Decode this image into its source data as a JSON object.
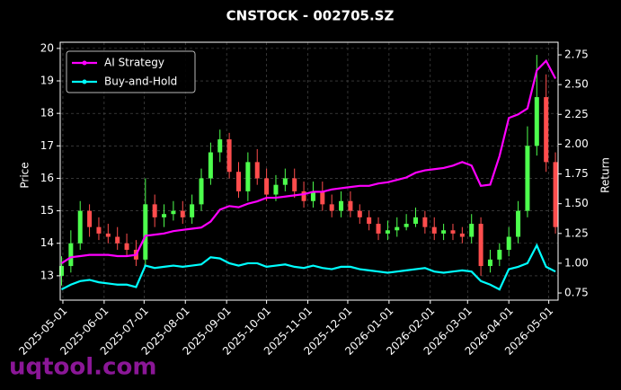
{
  "chart_data": {
    "type": "candlestick",
    "title": "CNSTOCK - 002705.SZ",
    "ylabel": "Price",
    "y2label": "Return",
    "watermark": "uqtool.com",
    "legend": "upper left",
    "grid": true,
    "up_color": "#4dff4d",
    "down_color": "#ff4d4d",
    "x": [
      "2025-04-30",
      "2025-05-07",
      "2025-05-14",
      "2025-05-21",
      "2025-05-28",
      "2025-06-04",
      "2025-06-11",
      "2025-06-18",
      "2025-06-25",
      "2025-07-02",
      "2025-07-09",
      "2025-07-16",
      "2025-07-23",
      "2025-07-30",
      "2025-08-06",
      "2025-08-13",
      "2025-08-20",
      "2025-08-27",
      "2025-09-03",
      "2025-09-10",
      "2025-09-17",
      "2025-09-24",
      "2025-10-01",
      "2025-10-08",
      "2025-10-15",
      "2025-10-22",
      "2025-10-29",
      "2025-11-05",
      "2025-11-12",
      "2025-11-19",
      "2025-11-26",
      "2025-12-03",
      "2025-12-10",
      "2025-12-17",
      "2025-12-24",
      "2025-12-31",
      "2026-01-07",
      "2026-01-14",
      "2026-01-21",
      "2026-01-28",
      "2026-02-04",
      "2026-02-11",
      "2026-02-18",
      "2026-02-25",
      "2026-03-04",
      "2026-03-11",
      "2026-03-18",
      "2026-03-25",
      "2026-04-01",
      "2026-04-08",
      "2026-04-15",
      "2026-04-22",
      "2026-04-29",
      "2026-05-06"
    ],
    "open": [
      13.0,
      13.3,
      14.0,
      15.0,
      14.5,
      14.3,
      14.2,
      14.0,
      13.8,
      13.5,
      15.2,
      14.8,
      14.9,
      15.0,
      14.8,
      15.2,
      16.0,
      16.8,
      17.2,
      16.2,
      15.6,
      16.5,
      16.0,
      15.5,
      15.8,
      16.0,
      15.6,
      15.3,
      15.6,
      15.2,
      15.0,
      15.3,
      15.0,
      14.8,
      14.6,
      14.3,
      14.4,
      14.5,
      14.6,
      14.8,
      14.5,
      14.3,
      14.4,
      14.3,
      14.2,
      14.6,
      13.3,
      13.5,
      13.8,
      14.2,
      15.0,
      17.0,
      18.5,
      16.5
    ],
    "high": [
      13.6,
      14.4,
      15.3,
      15.2,
      14.8,
      14.6,
      14.5,
      14.3,
      14.1,
      16.0,
      15.5,
      15.2,
      15.3,
      15.3,
      15.5,
      16.3,
      17.1,
      17.5,
      17.4,
      16.5,
      16.8,
      16.9,
      16.3,
      16.1,
      16.3,
      16.3,
      15.9,
      15.9,
      15.9,
      15.5,
      15.6,
      15.6,
      15.2,
      15.0,
      14.8,
      14.7,
      14.8,
      14.9,
      15.1,
      15.0,
      14.8,
      14.6,
      14.6,
      14.5,
      14.9,
      14.8,
      13.8,
      14.0,
      14.5,
      15.3,
      17.6,
      19.8,
      19.2,
      16.8
    ],
    "low": [
      12.7,
      13.1,
      13.8,
      14.2,
      14.1,
      14.0,
      13.8,
      13.6,
      13.3,
      13.3,
      14.5,
      14.5,
      14.7,
      14.6,
      14.6,
      15.0,
      15.8,
      16.5,
      16.0,
      15.4,
      15.3,
      15.8,
      15.3,
      15.3,
      15.6,
      15.4,
      15.1,
      15.1,
      15.0,
      14.8,
      14.8,
      14.8,
      14.6,
      14.4,
      14.1,
      14.1,
      14.2,
      14.4,
      14.5,
      14.3,
      14.1,
      14.1,
      14.1,
      14.0,
      14.0,
      13.0,
      13.1,
      13.3,
      13.6,
      14.0,
      14.8,
      16.7,
      16.2,
      14.3
    ],
    "close": [
      13.3,
      14.0,
      15.0,
      14.5,
      14.3,
      14.2,
      14.0,
      13.8,
      13.5,
      15.2,
      14.8,
      14.9,
      15.0,
      14.8,
      15.2,
      16.0,
      16.8,
      17.2,
      16.2,
      15.6,
      16.5,
      16.0,
      15.5,
      15.8,
      16.0,
      15.6,
      15.3,
      15.6,
      15.2,
      15.0,
      15.3,
      15.0,
      14.8,
      14.6,
      14.3,
      14.4,
      14.5,
      14.6,
      14.8,
      14.5,
      14.3,
      14.4,
      14.3,
      14.2,
      14.6,
      13.3,
      13.5,
      13.8,
      14.2,
      15.0,
      17.0,
      18.5,
      16.5,
      14.5
    ],
    "series": [
      {
        "name": "AI Strategy",
        "color": "#ff00ff",
        "axis": "y2",
        "values": [
          1.0,
          1.05,
          1.06,
          1.07,
          1.07,
          1.07,
          1.06,
          1.06,
          1.07,
          1.23,
          1.24,
          1.25,
          1.27,
          1.28,
          1.29,
          1.3,
          1.35,
          1.45,
          1.48,
          1.47,
          1.5,
          1.52,
          1.55,
          1.55,
          1.56,
          1.57,
          1.58,
          1.6,
          1.6,
          1.62,
          1.63,
          1.64,
          1.65,
          1.65,
          1.67,
          1.68,
          1.7,
          1.72,
          1.76,
          1.78,
          1.79,
          1.8,
          1.82,
          1.85,
          1.82,
          1.65,
          1.66,
          1.9,
          2.22,
          2.25,
          2.3,
          2.62,
          2.7,
          2.55
        ]
      },
      {
        "name": "Buy-and-Hold",
        "color": "#00ffff",
        "axis": "y2",
        "values": [
          0.78,
          0.82,
          0.85,
          0.86,
          0.84,
          0.83,
          0.82,
          0.82,
          0.8,
          0.98,
          0.96,
          0.97,
          0.98,
          0.97,
          0.98,
          0.99,
          1.05,
          1.04,
          1.0,
          0.98,
          1.0,
          1.0,
          0.97,
          0.98,
          0.99,
          0.97,
          0.96,
          0.98,
          0.96,
          0.95,
          0.97,
          0.97,
          0.95,
          0.94,
          0.93,
          0.92,
          0.93,
          0.94,
          0.95,
          0.96,
          0.93,
          0.92,
          0.93,
          0.94,
          0.93,
          0.85,
          0.82,
          0.78,
          0.95,
          0.97,
          1.0,
          1.15,
          0.97,
          0.93
        ]
      }
    ],
    "xlim": [
      "2025-04-29",
      "2026-05-08"
    ],
    "xticks": [
      "2025-05-01",
      "2025-06-01",
      "2025-07-01",
      "2025-08-01",
      "2025-09-01",
      "2025-10-01",
      "2025-11-01",
      "2025-12-01",
      "2026-01-01",
      "2026-02-01",
      "2026-03-01",
      "2026-04-01",
      "2026-05-01"
    ],
    "ylim": [
      12.25,
      20.19
    ],
    "yticks": [
      13,
      14,
      15,
      16,
      17,
      18,
      19,
      20
    ],
    "y2lim": [
      0.69,
      2.856
    ],
    "y2ticks": [
      0.75,
      {
        "value": 1,
        "label": "1.00"
      },
      1.25,
      {
        "value": 1.5,
        "label": "1.50"
      },
      1.75,
      {
        "value": 2,
        "label": "2.00"
      },
      2.25,
      {
        "value": 2.5,
        "label": "2.50"
      },
      2.75
    ]
  }
}
